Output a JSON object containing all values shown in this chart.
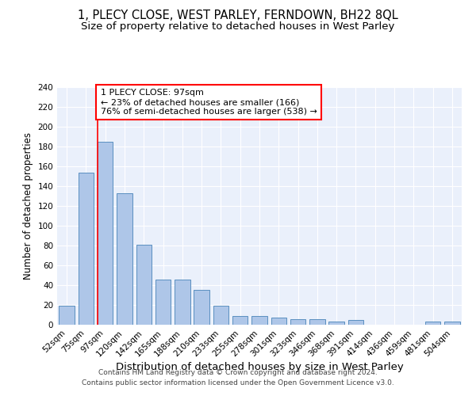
{
  "title_line1": "1, PLECY CLOSE, WEST PARLEY, FERNDOWN, BH22 8QL",
  "title_line2": "Size of property relative to detached houses in West Parley",
  "xlabel": "Distribution of detached houses by size in West Parley",
  "ylabel": "Number of detached properties",
  "categories": [
    "52sqm",
    "75sqm",
    "97sqm",
    "120sqm",
    "142sqm",
    "165sqm",
    "188sqm",
    "210sqm",
    "233sqm",
    "255sqm",
    "278sqm",
    "301sqm",
    "323sqm",
    "346sqm",
    "368sqm",
    "391sqm",
    "414sqm",
    "436sqm",
    "459sqm",
    "481sqm",
    "504sqm"
  ],
  "values": [
    19,
    154,
    185,
    133,
    81,
    46,
    46,
    35,
    19,
    9,
    9,
    7,
    6,
    6,
    3,
    5,
    0,
    0,
    0,
    3,
    3
  ],
  "bar_color": "#aec6e8",
  "bar_edge_color": "#5a8fc0",
  "red_line_index": 2,
  "annotation_text": "1 PLECY CLOSE: 97sqm\n← 23% of detached houses are smaller (166)\n76% of semi-detached houses are larger (538) →",
  "footer_text": "Contains HM Land Registry data © Crown copyright and database right 2024.\nContains public sector information licensed under the Open Government Licence v3.0.",
  "ylim": [
    0,
    240
  ],
  "yticks": [
    0,
    20,
    40,
    60,
    80,
    100,
    120,
    140,
    160,
    180,
    200,
    220,
    240
  ],
  "background_color": "#eaf0fb",
  "grid_color": "white",
  "title_fontsize": 10.5,
  "subtitle_fontsize": 9.5,
  "xlabel_fontsize": 9.5,
  "ylabel_fontsize": 8.5,
  "tick_fontsize": 7.5,
  "annotation_fontsize": 8,
  "footer_fontsize": 6.5
}
